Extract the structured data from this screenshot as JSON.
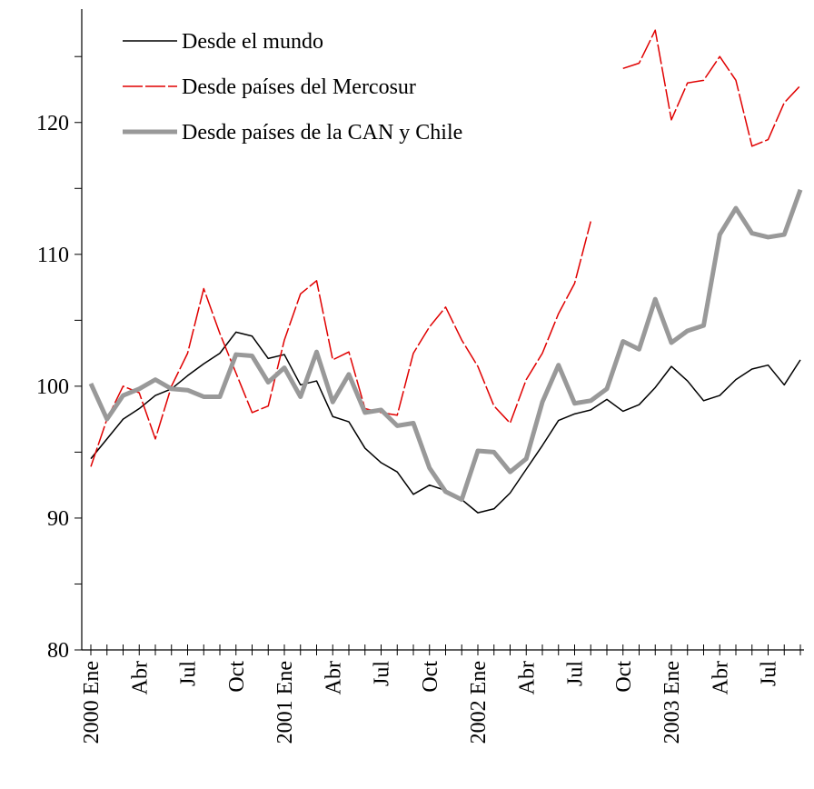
{
  "chart_data": {
    "type": "line",
    "categories": [
      "2000 Ene",
      null,
      null,
      "Abr",
      null,
      null,
      "Jul",
      null,
      null,
      "Oct",
      null,
      null,
      "2001 Ene",
      null,
      null,
      "Abr",
      null,
      null,
      "Jul",
      null,
      null,
      "Oct",
      null,
      null,
      "2002 Ene",
      null,
      null,
      "Abr",
      null,
      null,
      "Jul",
      null,
      null,
      "Oct",
      null,
      null,
      "2003 Ene",
      null,
      null,
      "Abr",
      null,
      null,
      "Jul",
      null,
      null
    ],
    "series": [
      {
        "name": "Desde el mundo",
        "color": "#000000",
        "width": 1.5,
        "dash": false,
        "values": [
          94.5,
          96,
          97.5,
          98.3,
          99.3,
          99.8,
          100.8,
          101.7,
          102.5,
          104.1,
          103.8,
          102.1,
          102.4,
          100.1,
          100.4,
          97.7,
          97.3,
          95.3,
          94.2,
          93.5,
          91.8,
          92.5,
          92.1,
          91.4,
          90.4,
          90.7,
          91.9,
          93.7,
          95.5,
          97.4,
          97.9,
          98.2,
          99,
          98.1,
          98.6,
          99.9,
          101.5,
          100.4,
          98.9,
          99.3,
          100.5,
          101.3,
          101.6,
          100.1,
          102
        ]
      },
      {
        "name": "Desde países del Mercosur",
        "color": "#e00000",
        "width": 1.5,
        "dash": true,
        "values": [
          93.9,
          97.5,
          100,
          99.5,
          96,
          100,
          102.5,
          107.4,
          104,
          101,
          98,
          98.5,
          103.5,
          107,
          108,
          102,
          102.6,
          98.3,
          98,
          97.8,
          102.5,
          104.5,
          106,
          103.5,
          101.5,
          98.5,
          97.2,
          100.5,
          102.5,
          105.5,
          107.8,
          112.5,
          null,
          124.1,
          124.5,
          127,
          120.2,
          123,
          123.2,
          125,
          123.2,
          118.2,
          118.7,
          121.5,
          122.8
        ]
      },
      {
        "name": "Desde países de la CAN y Chile",
        "color": "#999999",
        "width": 5,
        "dash": false,
        "values": [
          100.2,
          97.5,
          99.3,
          99.8,
          100.5,
          99.8,
          99.7,
          99.2,
          99.2,
          102.4,
          102.3,
          100.3,
          101.4,
          99.2,
          102.6,
          98.8,
          100.9,
          98,
          98.2,
          97,
          97.2,
          93.8,
          92,
          91.4,
          95.1,
          95,
          93.5,
          94.5,
          98.8,
          101.6,
          98.7,
          98.9,
          99.8,
          103.4,
          102.8,
          106.6,
          103.3,
          104.2,
          104.6,
          111.5,
          113.5,
          111.6,
          111.3,
          111.5,
          114.9
        ]
      }
    ],
    "ylim": [
      80,
      128.6
    ],
    "yticks": [
      80,
      90,
      100,
      110,
      120
    ],
    "yminor_ticks": [
      85,
      95,
      105,
      115,
      125
    ],
    "legend": "upper left",
    "grid": false
  }
}
